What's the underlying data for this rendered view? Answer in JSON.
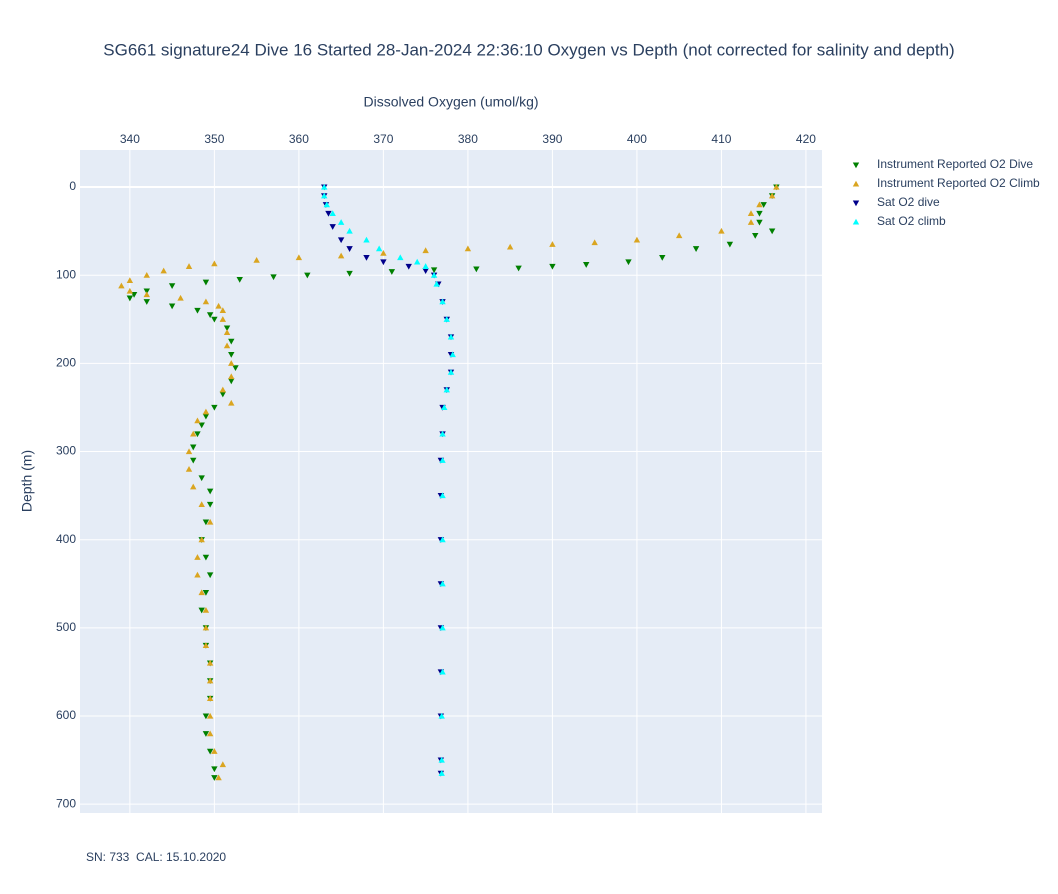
{
  "chart_data": {
    "type": "scatter",
    "title": "SG661 signature24 Dive 16 Started 28-Jan-2024 22:36:10  Oxygen vs Depth (not corrected for salinity and depth)",
    "x_label": "Dissolved Oxygen (umol/kg)",
    "y_label": "Depth (m)",
    "annotation": "SN: 733  CAL: 15.10.2020",
    "xlim": [
      334.1,
      421.9
    ],
    "xticks": [
      340,
      350,
      360,
      370,
      380,
      390,
      400,
      410,
      420
    ],
    "ylim": [
      710,
      -42
    ],
    "yticks": [
      0,
      100,
      200,
      300,
      400,
      500,
      600,
      700
    ],
    "grid": true,
    "legend": "right",
    "series": [
      {
        "name": "Instrument Reported O2 Dive",
        "color": "#008000",
        "symbol": "triangle-down",
        "x": [
          416.5,
          416,
          415,
          414.5,
          414.5,
          416,
          414,
          411,
          407,
          403,
          399,
          394,
          390,
          386,
          381,
          376,
          371,
          366,
          361,
          357,
          353,
          349,
          345,
          342,
          340.5,
          340,
          342,
          345,
          348,
          349.5,
          350,
          351.5,
          352,
          352,
          352.5,
          352,
          351,
          350,
          349,
          348.5,
          348,
          347.5,
          347.5,
          348.5,
          349.5,
          349.5,
          349,
          348.5,
          349,
          349.5,
          349,
          348.5,
          349,
          349,
          349.5,
          349.5,
          349.5,
          349,
          349,
          349.5,
          350,
          350
        ],
        "values": [
          0,
          10,
          20,
          30,
          40,
          50,
          55,
          65,
          70,
          80,
          85,
          88,
          90,
          92,
          93,
          94,
          96,
          98,
          100,
          102,
          105,
          108,
          112,
          118,
          122,
          126,
          130,
          135,
          140,
          145,
          150,
          160,
          175,
          190,
          205,
          220,
          235,
          250,
          260,
          270,
          280,
          295,
          310,
          330,
          345,
          360,
          380,
          400,
          420,
          440,
          460,
          480,
          500,
          520,
          540,
          560,
          580,
          600,
          620,
          640,
          660,
          670
        ]
      },
      {
        "name": "Instrument Reported O2 Climb",
        "color": "#daa520",
        "symbol": "triangle-up",
        "x": [
          416.5,
          416,
          414.5,
          413.5,
          413.5,
          410,
          405,
          400,
          395,
          390,
          385,
          380,
          375,
          370,
          365,
          360,
          355,
          350,
          347,
          344,
          342,
          340,
          339,
          340,
          342,
          346,
          349,
          350.5,
          351,
          351,
          351.5,
          351.5,
          352,
          352,
          351,
          352,
          349,
          348,
          347.5,
          347,
          347,
          347.5,
          348.5,
          349.5,
          348.5,
          348,
          348,
          348.5,
          349,
          349,
          349,
          349.5,
          349.5,
          349.5,
          349.5,
          349.5,
          350,
          351,
          350.5
        ],
        "values": [
          0,
          10,
          20,
          30,
          40,
          50,
          55,
          60,
          63,
          65,
          68,
          70,
          72,
          75,
          78,
          80,
          83,
          87,
          90,
          95,
          100,
          106,
          112,
          118,
          122,
          126,
          130,
          135,
          140,
          150,
          165,
          180,
          200,
          215,
          230,
          245,
          255,
          265,
          280,
          300,
          320,
          340,
          360,
          380,
          400,
          420,
          440,
          460,
          480,
          500,
          520,
          540,
          560,
          580,
          600,
          620,
          640,
          655,
          670
        ]
      },
      {
        "name": "Sat O2 dive",
        "color": "#00008b",
        "symbol": "triangle-down",
        "x": [
          363,
          363,
          363.2,
          363.5,
          364,
          365,
          366,
          368,
          370,
          373,
          375,
          376,
          376.5,
          377,
          377.5,
          378,
          378,
          378,
          377.5,
          377,
          377,
          376.8,
          376.8,
          376.8,
          376.8,
          376.8,
          376.8,
          376.8,
          376.8,
          376.8
        ],
        "values": [
          0,
          10,
          20,
          30,
          45,
          60,
          70,
          80,
          85,
          90,
          95,
          100,
          110,
          130,
          150,
          170,
          190,
          210,
          230,
          250,
          280,
          310,
          350,
          400,
          450,
          500,
          550,
          600,
          650,
          665
        ]
      },
      {
        "name": "Sat O2 climb",
        "color": "#00ffff",
        "symbol": "triangle-up",
        "x": [
          363,
          363,
          363.3,
          364,
          365,
          366,
          368,
          369.5,
          372,
          374,
          375,
          376,
          376.3,
          377,
          377.5,
          378,
          378.2,
          378,
          377.5,
          377.2,
          377,
          377,
          377,
          377,
          377,
          377,
          377,
          376.9,
          376.9,
          376.9
        ],
        "values": [
          0,
          10,
          20,
          30,
          40,
          50,
          60,
          70,
          80,
          85,
          90,
          100,
          110,
          130,
          150,
          170,
          190,
          210,
          230,
          250,
          280,
          310,
          350,
          400,
          450,
          500,
          550,
          600,
          650,
          665
        ]
      }
    ]
  }
}
